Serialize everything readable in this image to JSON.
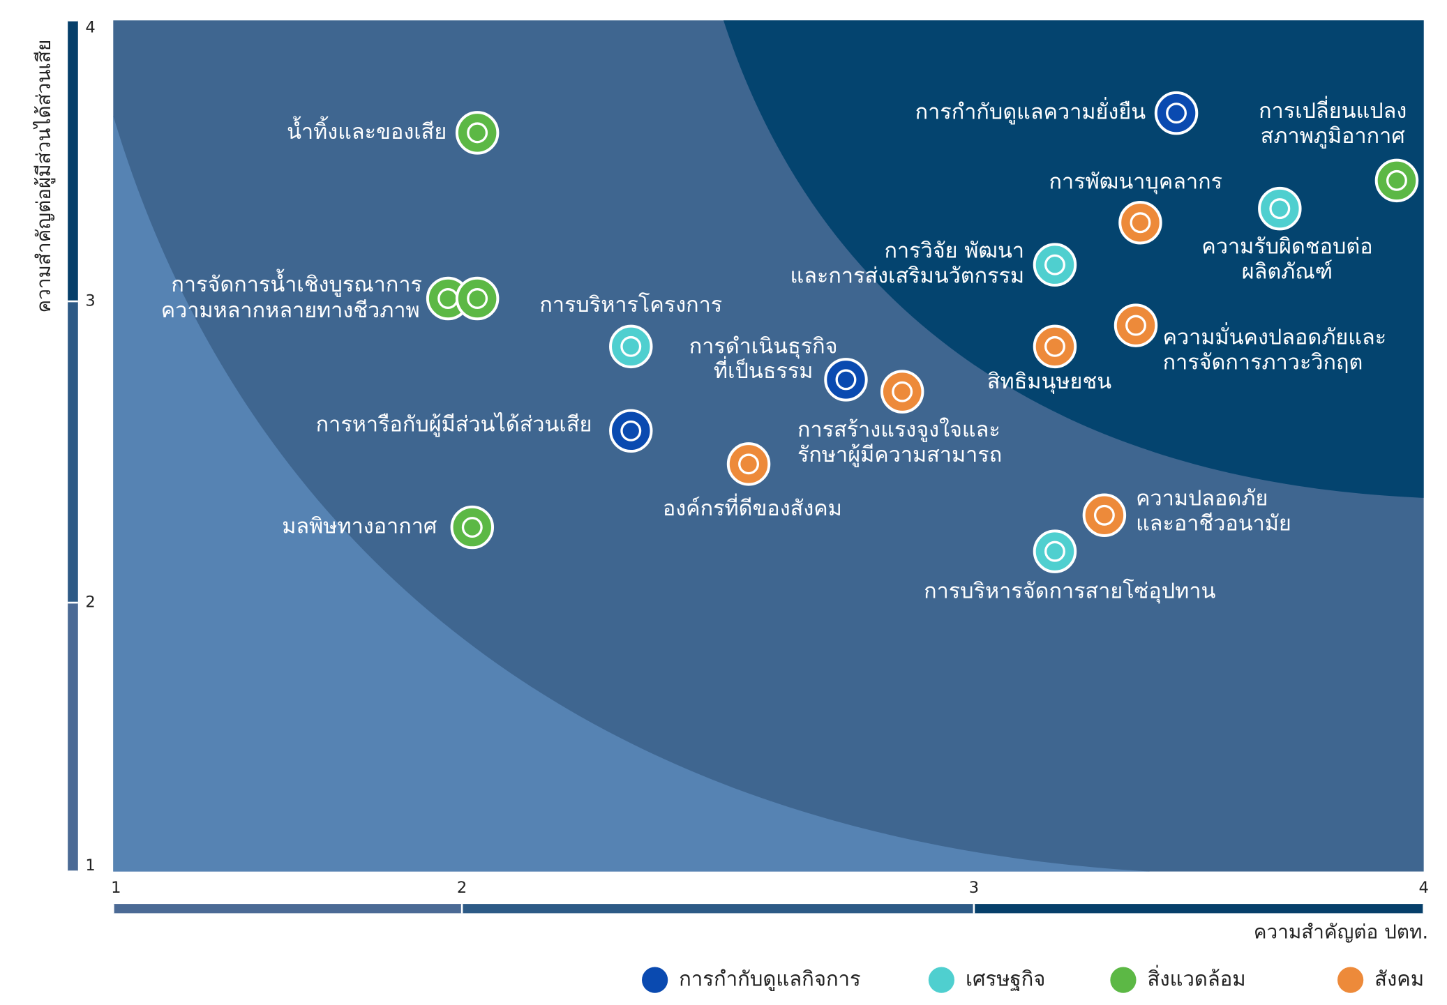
{
  "chart_data": {
    "type": "scatter",
    "xlabel": "ความสำคัญต่อ ปตท.",
    "ylabel": "ความสำคัญต่อผู้มีส่วนได้ส่วนเสีย",
    "xlim": [
      1,
      4
    ],
    "ylim": [
      1,
      4
    ],
    "xticks": [
      1,
      2,
      3,
      4
    ],
    "yticks": [
      1,
      2,
      3,
      4
    ],
    "series": [
      {
        "name": "การกำกับดูแลกิจการ",
        "color": "#0a4ab0",
        "x": [
          3.45,
          2.75,
          2.33
        ],
        "y": [
          3.67,
          2.74,
          2.57
        ],
        "labels": [
          [
            "การกำกับดูแลความยั่งยืน"
          ],
          [
            "การดำเนินธุรกิจ",
            "ที่เป็นธรรม"
          ],
          [
            "การหารือกับผู้มีส่วนได้ส่วนเสีย"
          ]
        ]
      },
      {
        "name": "เศรษฐกิจ",
        "color": "#4fcfcf",
        "x": [
          3.18,
          3.68,
          2.33,
          3.18
        ],
        "y": [
          3.13,
          3.33,
          2.85,
          2.17
        ],
        "labels": [
          [
            "การวิจัย พัฒนา",
            "และการส่งเสริมนวัตกรรม"
          ],
          [
            "ความรับผิดชอบต่อ",
            "ผลิตภัณฑ์"
          ],
          [
            "การบริหารโครงการ"
          ],
          [
            "การบริหารจัดการสายโซ่อุปทาน"
          ]
        ]
      },
      {
        "name": "สิ่งแวดล้อม",
        "color": "#5cb845",
        "x": [
          2.03,
          1.96,
          2.03,
          2.02,
          3.94
        ],
        "y": [
          3.6,
          3.01,
          3.01,
          2.25,
          3.43
        ],
        "labels": [
          [
            "น้ำทิ้งและของเสีย"
          ],
          [
            "การจัดการน้ำเชิงบูรณาการ"
          ],
          [
            "ความหลากหลายทางชีวภาพ"
          ],
          [
            "มลพิษทางอากาศ"
          ],
          [
            "การเปลี่ยนแปลง",
            "สภาพภูมิอากาศ"
          ]
        ]
      },
      {
        "name": "สังคม",
        "color": "#ed8a3a",
        "x": [
          3.37,
          3.36,
          3.18,
          2.86,
          2.56,
          3.29
        ],
        "y": [
          3.28,
          2.92,
          2.85,
          2.7,
          2.46,
          2.29
        ],
        "labels": [
          [
            "การพัฒนาบุคลากร"
          ],
          [
            "ความมั่นคงปลอดภัยและ",
            "การจัดการภาวะวิกฤต"
          ],
          [
            "สิทธิมนุษยชน"
          ],
          [
            "การสร้างแรงจูงใจและ",
            "รักษาผู้มีความสามารถ"
          ],
          [
            "องค์กรที่ดีของสังคม"
          ],
          [
            "ความปลอดภัย",
            "และอาชีวอนามัย"
          ]
        ]
      }
    ]
  }
}
